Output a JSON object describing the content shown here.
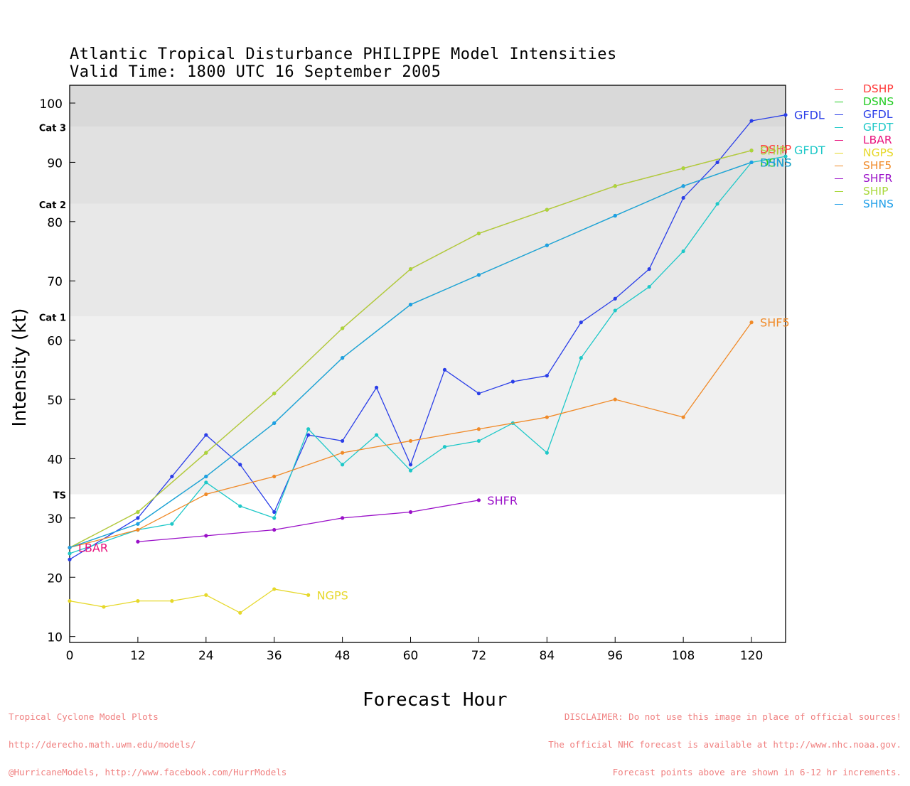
{
  "title": "Atlantic Tropical Disturbance PHILIPPE Model Intensities",
  "subtitle": "Valid Time: 1800 UTC 16 September 2005",
  "footer_left": [
    "Tropical Cyclone Model Plots",
    "http://derecho.math.uwm.edu/models/",
    "@HurricaneModels, http://www.facebook.com/HurrModels"
  ],
  "footer_right": [
    "DISCLAIMER: Do not use this image in place of official sources!",
    "The official NHC forecast is available at http://www.nhc.noaa.gov.",
    "Forecast points above are shown in 6-12 hr increments."
  ],
  "chart_data": {
    "type": "line",
    "title": "Atlantic Tropical Disturbance PHILIPPE Model Intensities",
    "subtitle": "Valid Time: 1800 UTC 16 September 2005",
    "xlabel": "Forecast Hour",
    "ylabel": "Intensity (kt)",
    "xlim": [
      0,
      126
    ],
    "ylim": [
      9,
      103
    ],
    "xticks": [
      0,
      12,
      24,
      36,
      48,
      60,
      72,
      84,
      96,
      108,
      120
    ],
    "yticks": [
      10,
      20,
      30,
      40,
      50,
      60,
      70,
      80,
      90,
      100
    ],
    "bands": [
      {
        "label": "TS",
        "from": 34,
        "to": 64,
        "color": "#f0f0f0"
      },
      {
        "label": "Cat 1",
        "from": 64,
        "to": 83,
        "color": "#e8e8e8"
      },
      {
        "label": "Cat 2",
        "from": 83,
        "to": 96,
        "color": "#e1e1e1"
      },
      {
        "label": "Cat 3",
        "from": 96,
        "to": 103,
        "color": "#d9d9d9"
      }
    ],
    "legend_position": "right",
    "series": [
      {
        "name": "DSHP",
        "color": "#ff3b3b",
        "x": [
          0,
          12,
          24,
          36,
          48,
          60,
          72,
          84,
          96,
          108,
          120
        ],
        "values": [
          25,
          31,
          41,
          51,
          62,
          72,
          78,
          82,
          86,
          89,
          92
        ],
        "end_label": "DSHP"
      },
      {
        "name": "DSNS",
        "color": "#22cc22",
        "x": [
          0,
          12,
          24,
          36,
          48,
          60,
          72,
          84,
          96,
          108,
          120
        ],
        "values": [
          25,
          29,
          37,
          46,
          57,
          66,
          71,
          76,
          81,
          86,
          90
        ],
        "end_label": "DSNS"
      },
      {
        "name": "GFDL",
        "color": "#2a3ee8",
        "x": [
          0,
          12,
          18,
          24,
          30,
          36,
          42,
          48,
          54,
          60,
          66,
          72,
          78,
          84,
          90,
          96,
          102,
          108,
          114,
          120,
          126
        ],
        "values": [
          23,
          30,
          37,
          44,
          39,
          31,
          44,
          43,
          52,
          39,
          55,
          51,
          53,
          54,
          63,
          67,
          72,
          84,
          90,
          97,
          98
        ],
        "end_label": "GFDL"
      },
      {
        "name": "GFDT",
        "color": "#1ec8c8",
        "x": [
          0,
          12,
          18,
          24,
          30,
          36,
          42,
          48,
          54,
          60,
          66,
          72,
          78,
          84,
          90,
          96,
          102,
          108,
          114,
          120,
          126
        ],
        "values": [
          24,
          28,
          29,
          36,
          32,
          30,
          45,
          39,
          44,
          38,
          42,
          43,
          46,
          41,
          57,
          65,
          69,
          75,
          83,
          90,
          91
        ],
        "end_label": "GFDT"
      },
      {
        "name": "LBAR",
        "color": "#e8127d",
        "x": [
          0
        ],
        "values": [
          25
        ],
        "end_label": "LBAR"
      },
      {
        "name": "NGPS",
        "color": "#e6d82a",
        "x": [
          0,
          6,
          12,
          18,
          24,
          30,
          36,
          42
        ],
        "values": [
          16,
          15,
          16,
          16,
          17,
          14,
          18,
          17
        ],
        "end_label": "NGPS"
      },
      {
        "name": "SHF5",
        "color": "#f08a28",
        "x": [
          0,
          12,
          24,
          36,
          48,
          60,
          72,
          84,
          96,
          108,
          120
        ],
        "values": [
          25,
          28,
          34,
          37,
          41,
          43,
          45,
          47,
          50,
          47,
          63
        ],
        "end_label": "SHF5"
      },
      {
        "name": "SHFR",
        "color": "#9a10c8",
        "x": [
          12,
          24,
          36,
          48,
          60,
          72
        ],
        "values": [
          26,
          27,
          28,
          30,
          31,
          33
        ],
        "end_label": "SHFR"
      },
      {
        "name": "SHIP",
        "color": "#a8d83a",
        "x": [
          0,
          12,
          24,
          36,
          48,
          60,
          72,
          84,
          96,
          108,
          120
        ],
        "values": [
          25,
          31,
          41,
          51,
          62,
          72,
          78,
          82,
          86,
          89,
          92
        ],
        "end_label": "SHIP"
      },
      {
        "name": "SHNS",
        "color": "#1e9ee8",
        "x": [
          0,
          12,
          24,
          36,
          48,
          60,
          72,
          84,
          96,
          108,
          120
        ],
        "values": [
          25,
          29,
          37,
          46,
          57,
          66,
          71,
          76,
          81,
          86,
          90
        ],
        "end_label": "SHNS"
      }
    ]
  }
}
